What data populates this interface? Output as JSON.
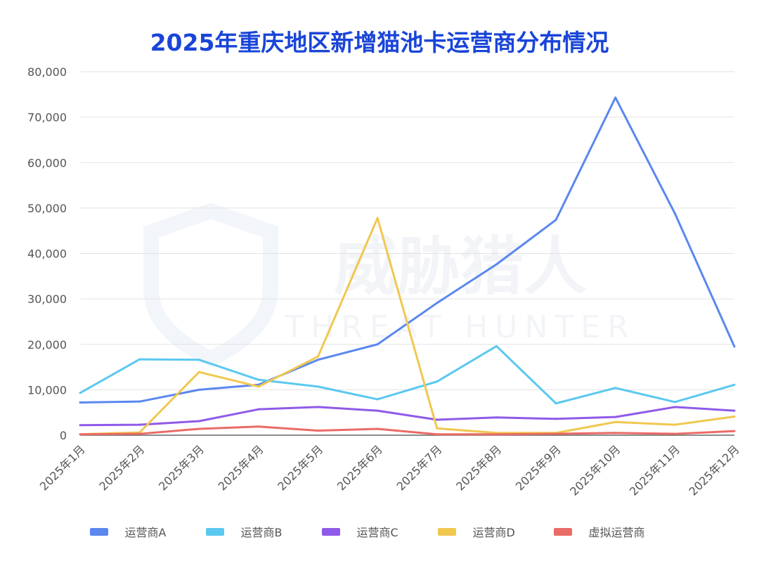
{
  "chart_data": {
    "type": "line",
    "title": "2025年重庆地区新增猫池卡运营商分布情况",
    "xlabel": "",
    "ylabel": "",
    "ylim": [
      0,
      80000
    ],
    "yticks": [
      "0",
      "10,000",
      "20,000",
      "30,000",
      "40,000",
      "50,000",
      "60,000",
      "70,000",
      "80,000"
    ],
    "ytick_values": [
      0,
      10000,
      20000,
      30000,
      40000,
      50000,
      60000,
      70000,
      80000
    ],
    "categories": [
      "2025年1月",
      "2025年2月",
      "2025年3月",
      "2025年4月",
      "2025年5月",
      "2025年6月",
      "2025年7月",
      "2025年8月",
      "2025年9月",
      "2025年10月",
      "2025年11月",
      "2025年12月"
    ],
    "grid": true,
    "legend_position": "bottom",
    "series": [
      {
        "name": "运营商A",
        "color": "#5b87ef",
        "values": [
          7200,
          7400,
          10000,
          11100,
          16600,
          20000,
          29100,
          37600,
          47400,
          74300,
          48800,
          19500
        ]
      },
      {
        "name": "运营商B",
        "color": "#5bc8f0",
        "values": [
          9300,
          16700,
          16600,
          12200,
          10700,
          7900,
          11800,
          19600,
          7000,
          10400,
          7300,
          11100
        ]
      },
      {
        "name": "运营商C",
        "color": "#8f5ae8",
        "values": [
          2200,
          2300,
          3100,
          5700,
          6200,
          5400,
          3400,
          3900,
          3600,
          4000,
          6200,
          5400
        ]
      },
      {
        "name": "运营商D",
        "color": "#f0c850",
        "values": [
          200,
          600,
          13900,
          10700,
          17300,
          47800,
          1500,
          500,
          500,
          2900,
          2300,
          4100
        ]
      },
      {
        "name": "虚拟运营商",
        "color": "#ea6b66",
        "values": [
          200,
          300,
          1400,
          1900,
          1000,
          1400,
          200,
          200,
          300,
          500,
          300,
          900
        ]
      }
    ]
  },
  "watermark": "威胁猎人 THREAT HUNTER"
}
